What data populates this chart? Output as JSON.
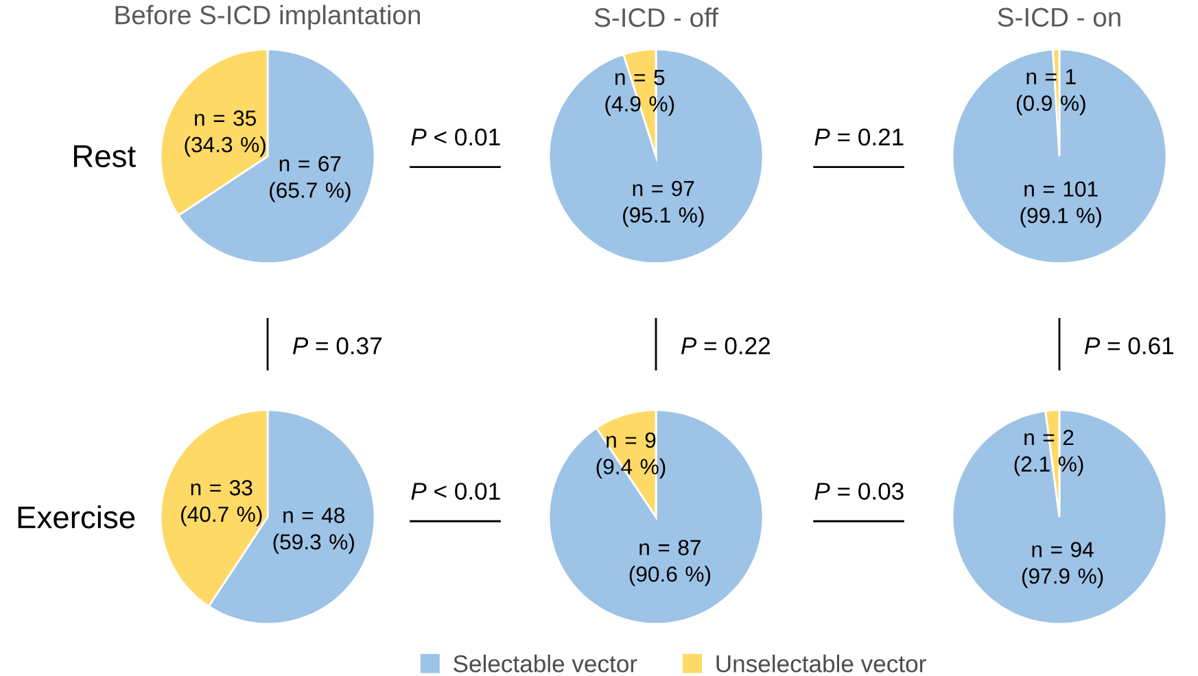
{
  "chart_data": [
    {
      "type": "pie",
      "title": "Before S-ICD implantation",
      "ylabel": "Rest",
      "values": [
        67,
        35
      ],
      "colors": [
        "#9dc3e6",
        "#ffd966"
      ],
      "value_labels": [
        "n = 67 (65.7 %)",
        "n = 35 (34.3 %)"
      ]
    },
    {
      "type": "pie",
      "title": "S-ICD - off",
      "values": [
        97,
        5
      ],
      "colors": [
        "#9dc3e6",
        "#ffd966"
      ],
      "value_labels": [
        "n = 97 (95.1 %)",
        "n = 5 (4.9 %)"
      ],
      "annotations": [
        "*P* < 0.01"
      ]
    },
    {
      "type": "pie",
      "title": "S-ICD - on",
      "values": [
        101,
        1
      ],
      "colors": [
        "#9dc3e6",
        "#ffd966"
      ],
      "value_labels": [
        "n = 101 (99.1 %)",
        "n = 1 (0.9 %)"
      ],
      "annotations": [
        "*P* = 0.21"
      ]
    },
    {
      "type": "pie",
      "ylabel": "Exercise",
      "values": [
        48,
        33
      ],
      "colors": [
        "#9dc3e6",
        "#ffd966"
      ],
      "value_labels": [
        "n = 48 (59.3 %)",
        "n = 33 (40.7 %)"
      ],
      "annotations": [
        "*P* = 0.37"
      ]
    },
    {
      "type": "pie",
      "categories": [
        "Selectable vector",
        "Unselectable vector"
      ],
      "values": [
        87,
        9
      ],
      "colors": [
        "#9dc3e6",
        "#ffd966"
      ],
      "value_labels": [
        "n = 87 (90.6 %)",
        "n = 9 (9.4 %)"
      ],
      "annotations": [
        "*P* = 0.22",
        "*P* < 0.01"
      ],
      "legend": "bottom"
    },
    {
      "type": "pie",
      "values": [
        94,
        2
      ],
      "colors": [
        "#9dc3e6",
        "#ffd966"
      ],
      "value_labels": [
        "n = 94 (97.9 %)",
        "n = 2 (2.1 %)"
      ],
      "annotations": [
        "*P* = 0.61",
        "*P* = 0.03"
      ]
    }
  ]
}
